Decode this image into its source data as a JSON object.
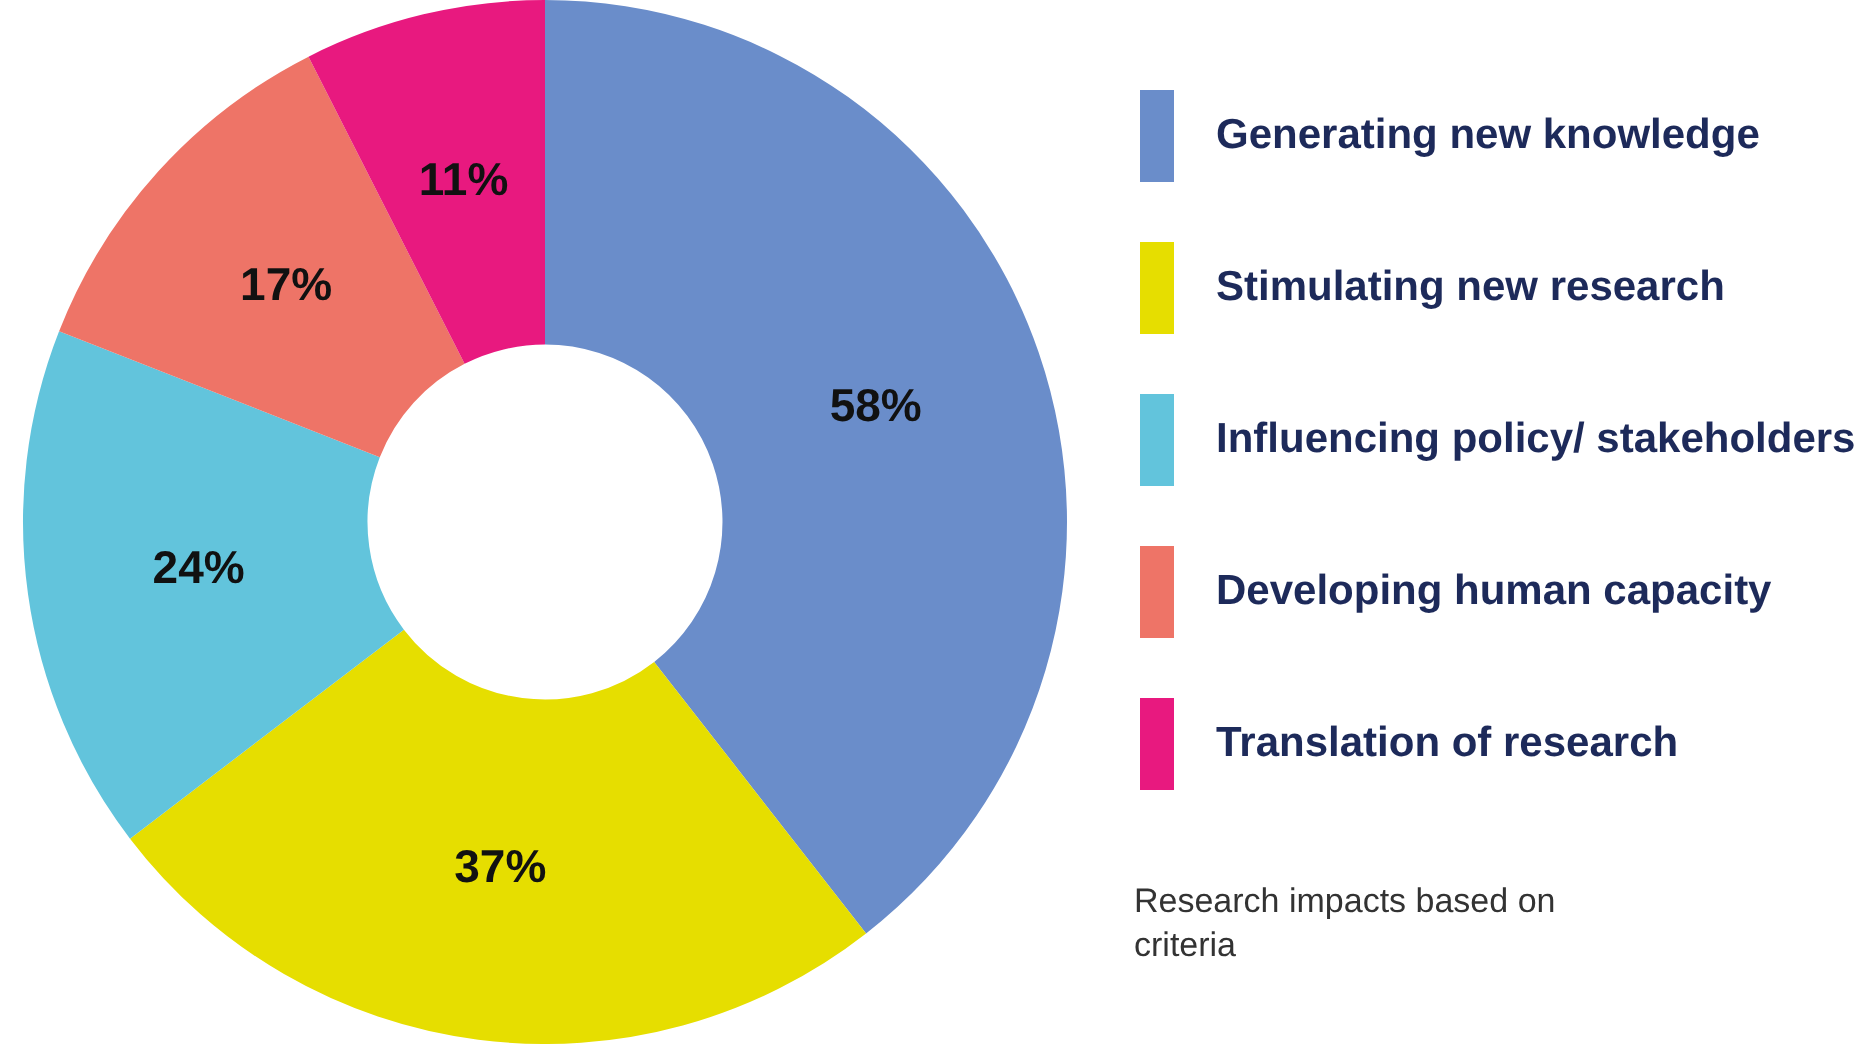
{
  "chart_data": {
    "type": "donut",
    "categories": [
      "Generating new knowledge",
      "Stimulating new research",
      "Influencing policy/ stakeholders",
      "Developing human capacity",
      "Translation of research"
    ],
    "values": [
      58,
      37,
      24,
      17,
      11
    ],
    "colors": [
      "#6a8dca",
      "#e6de00",
      "#62c4dc",
      "#ee7467",
      "#e8197f"
    ],
    "value_labels": [
      "58%",
      "37%",
      "24%",
      "17%",
      "11%"
    ],
    "legend": "right",
    "annotations": [
      "Research impacts based on criteria"
    ]
  }
}
